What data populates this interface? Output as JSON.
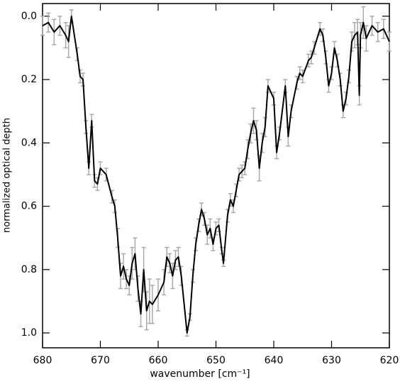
{
  "chart_data": {
    "type": "line",
    "xlabel": "wavenumber [cm⁻¹]",
    "ylabel": "normalized optical depth",
    "x": [
      680,
      679,
      678,
      677,
      676,
      675.5,
      675,
      674,
      673.5,
      673,
      672.5,
      672,
      671.5,
      671,
      670.5,
      670,
      669,
      668,
      667.5,
      667,
      666.5,
      666,
      665.5,
      665,
      664.5,
      664,
      663.5,
      663,
      662.5,
      662,
      661.5,
      661,
      660,
      659,
      658.5,
      658,
      657.5,
      657,
      656.5,
      656,
      655,
      654.5,
      654,
      653.5,
      653,
      652.5,
      652,
      651.5,
      651,
      650.5,
      650,
      649.5,
      649,
      648.7,
      648,
      647.5,
      647,
      646.5,
      646,
      645.5,
      645,
      644.5,
      644,
      643.5,
      643,
      642.5,
      642,
      641.5,
      641,
      640,
      639.5,
      639,
      638,
      637.5,
      637,
      636,
      635.5,
      635,
      634,
      633.5,
      633,
      632,
      631.5,
      631,
      630.5,
      630,
      629.5,
      629,
      628.5,
      628,
      627.5,
      627,
      626.5,
      626,
      625.5,
      625.2,
      625,
      624.5,
      624,
      623,
      622,
      621,
      620
    ],
    "series": [
      {
        "color": "#000000",
        "error_color": "#aaaaaa",
        "values": [
          0.03,
          0.02,
          0.05,
          0.03,
          0.06,
          0.08,
          0.0,
          0.12,
          0.19,
          0.2,
          0.35,
          0.48,
          0.33,
          0.52,
          0.53,
          0.48,
          0.5,
          0.57,
          0.6,
          0.7,
          0.82,
          0.79,
          0.83,
          0.85,
          0.78,
          0.75,
          0.86,
          0.94,
          0.8,
          0.93,
          0.9,
          0.91,
          0.88,
          0.84,
          0.76,
          0.78,
          0.82,
          0.77,
          0.76,
          0.82,
          1.0,
          0.95,
          0.82,
          0.72,
          0.66,
          0.61,
          0.64,
          0.69,
          0.67,
          0.72,
          0.67,
          0.66,
          0.74,
          0.78,
          0.63,
          0.58,
          0.6,
          0.55,
          0.5,
          0.49,
          0.48,
          0.42,
          0.37,
          0.33,
          0.36,
          0.48,
          0.4,
          0.35,
          0.22,
          0.26,
          0.43,
          0.37,
          0.22,
          0.38,
          0.3,
          0.21,
          0.18,
          0.19,
          0.14,
          0.13,
          0.1,
          0.04,
          0.06,
          0.13,
          0.22,
          0.18,
          0.1,
          0.14,
          0.2,
          0.3,
          0.26,
          0.19,
          0.08,
          0.06,
          0.05,
          0.25,
          0.06,
          0.02,
          0.07,
          0.03,
          0.05,
          0.04,
          0.08
        ],
        "errors": [
          0.03,
          0.03,
          0.04,
          0.03,
          0.04,
          0.05,
          0.02,
          0.02,
          0.02,
          0.02,
          0.02,
          0.02,
          0.02,
          0.02,
          0.02,
          0.02,
          0.02,
          0.02,
          0.02,
          0.03,
          0.04,
          0.04,
          0.03,
          0.03,
          0.05,
          0.05,
          0.04,
          0.04,
          0.07,
          0.06,
          0.07,
          0.06,
          0.05,
          0.04,
          0.03,
          0.03,
          0.04,
          0.03,
          0.03,
          0.03,
          0.01,
          0.01,
          0.02,
          0.02,
          0.02,
          0.02,
          0.02,
          0.03,
          0.03,
          0.02,
          0.02,
          0.02,
          0.01,
          0.01,
          0.02,
          0.02,
          0.02,
          0.02,
          0.02,
          0.02,
          0.02,
          0.03,
          0.03,
          0.04,
          0.03,
          0.04,
          0.03,
          0.03,
          0.02,
          0.02,
          0.02,
          0.02,
          0.02,
          0.03,
          0.02,
          0.02,
          0.02,
          0.02,
          0.02,
          0.02,
          0.02,
          0.02,
          0.02,
          0.02,
          0.02,
          0.02,
          0.02,
          0.02,
          0.02,
          0.02,
          0.02,
          0.02,
          0.03,
          0.04,
          0.04,
          0.03,
          0.04,
          0.05,
          0.04,
          0.03,
          0.03,
          0.03,
          0.03
        ]
      }
    ],
    "xlim": [
      680,
      620
    ],
    "xticks": [
      680,
      670,
      660,
      650,
      640,
      630,
      620
    ],
    "ylim": [
      -0.04,
      1.047
    ],
    "y_inverted": true,
    "yticks": [
      {
        "value": 0,
        "label": "0.0"
      },
      0.2,
      0.4,
      0.6,
      0.8,
      {
        "value": 1,
        "label": "1.0"
      }
    ]
  }
}
